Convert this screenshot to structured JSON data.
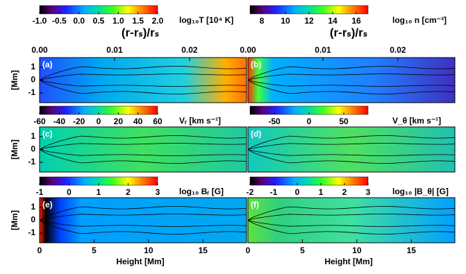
{
  "chart_data": [
    {
      "type": "colormap",
      "label": "(a)",
      "top_title": "(r-rₛ)/rₛ",
      "x2lim": [
        0,
        0.0276
      ],
      "x2ticks": [
        {
          "value": 0,
          "label": "0.00"
        },
        0.01,
        0.02
      ],
      "ylim": [
        -1.75,
        1.75
      ],
      "yticks": [
        1,
        0,
        -1
      ],
      "ylabel": "[Mm]",
      "xlim": [
        0,
        19
      ],
      "colorbar": {
        "label": "log₁₀T [10⁴ K]",
        "lim": [
          -1,
          2
        ],
        "ticks": [
          {
            "value": -1,
            "label": "-1.0"
          },
          {
            "value": -0.5,
            "label": "-0.5"
          },
          {
            "value": 0,
            "label": "0.0"
          },
          0.5,
          {
            "value": 1,
            "label": "1.0"
          },
          1.5,
          {
            "value": 2,
            "label": "2.0"
          }
        ]
      }
    },
    {
      "type": "colormap",
      "label": "(b)",
      "top_title": "(r-rₛ)/rₛ",
      "x2lim": [
        0,
        0.0276
      ],
      "x2ticks": [
        {
          "value": 0,
          "label": "0.00"
        },
        0.01,
        0.02
      ],
      "ylim": [
        -1.75,
        1.75
      ],
      "xlim": [
        0,
        19
      ],
      "colorbar": {
        "label": "log₁₀ n [cm⁻³]",
        "lim": [
          7,
          17
        ],
        "ticks": [
          8,
          10,
          12,
          14,
          16
        ]
      }
    },
    {
      "type": "colormap",
      "label": "(c)",
      "ylim": [
        -1.75,
        1.75
      ],
      "yticks": [
        1,
        0,
        -1
      ],
      "ylabel": "[Mm]",
      "xlim": [
        0,
        19
      ],
      "colorbar": {
        "label": "Vᵣ [km s⁻¹]",
        "lim": [
          -60,
          60
        ],
        "ticks": [
          -60,
          -40,
          -20,
          0,
          20,
          40,
          60
        ]
      }
    },
    {
      "type": "colormap",
      "label": "(d)",
      "ylim": [
        -1.75,
        1.75
      ],
      "xlim": [
        0,
        19
      ],
      "colorbar": {
        "label": "V_θ [km s⁻¹]",
        "lim": [
          -85,
          85
        ],
        "ticks": [
          -50,
          0,
          50
        ]
      }
    },
    {
      "type": "colormap",
      "label": "(e)",
      "ylim": [
        -1.75,
        1.75
      ],
      "yticks": [
        1,
        0,
        -1
      ],
      "ylabel": "[Mm]",
      "xlim": [
        0,
        19
      ],
      "xticks": [
        0,
        5,
        10,
        15
      ],
      "xlabel": "Height [Mm]",
      "colorbar": {
        "label": "log₁₀ Bᵣ [G]",
        "lim": [
          -1,
          3
        ],
        "ticks": [
          -1,
          0,
          1,
          2,
          3
        ]
      }
    },
    {
      "type": "colormap",
      "label": "(f)",
      "ylim": [
        -1.75,
        1.75
      ],
      "xlim": [
        0,
        19
      ],
      "xticks": [
        0,
        5,
        10,
        15
      ],
      "xlabel": "Height [Mm]",
      "colorbar": {
        "label": "log₁₀ |B_θ| [G]",
        "lim": [
          -2,
          3
        ],
        "ticks": [
          -2,
          -1,
          0,
          1,
          2,
          3
        ]
      }
    }
  ]
}
